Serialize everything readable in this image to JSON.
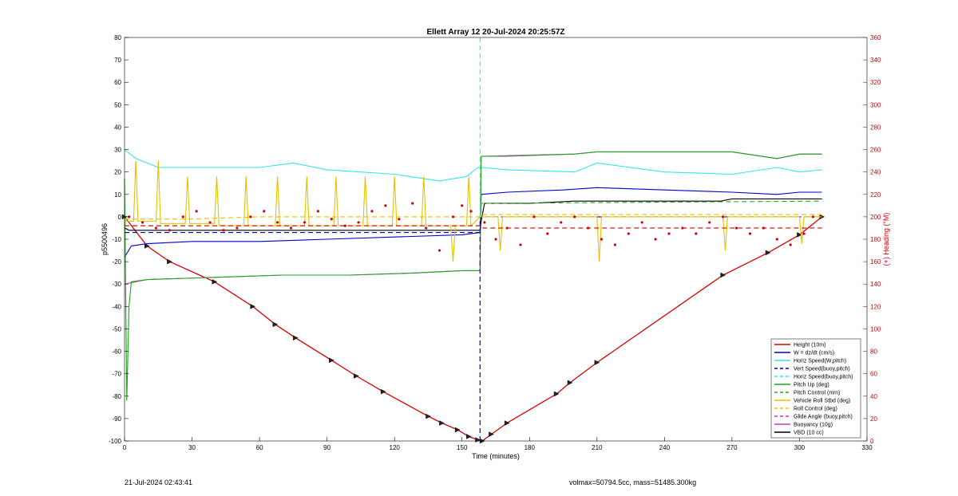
{
  "footer": {
    "left": "21-Jul-2024 02:43:41",
    "right": "volmax=50794.5cc, mass=51485.300kg"
  },
  "chart_data": {
    "type": "line",
    "title": "Ellett Array 12 20-Jul-2024 20:25:57Z",
    "xlabel": "Time (minutes)",
    "ylabel": "p5500496",
    "y2label": "(+) Heading (°M)",
    "xlim": [
      0,
      330
    ],
    "ylim": [
      -100,
      80
    ],
    "y2lim": [
      0,
      360
    ],
    "xticks": [
      0,
      30,
      60,
      90,
      120,
      150,
      180,
      210,
      240,
      270,
      300,
      330
    ],
    "yticks": [
      -100,
      -90,
      -80,
      -70,
      -60,
      -50,
      -40,
      -30,
      -20,
      -10,
      0,
      10,
      20,
      30,
      40,
      50,
      60,
      70,
      80
    ],
    "y2ticks": [
      0,
      20,
      40,
      60,
      80,
      100,
      120,
      140,
      160,
      180,
      200,
      220,
      240,
      260,
      280,
      300,
      320,
      340,
      360
    ],
    "grid": false,
    "legend_position": "bottom-right",
    "legend": [
      {
        "label": "Height (10m)",
        "color": "#d40000",
        "dash": false
      },
      {
        "label": "W = dz/dt (cm/s)",
        "color": "#0000cc",
        "dash": false
      },
      {
        "label": "Horiz Speed(W,pitch)",
        "color": "#33e5e5",
        "dash": false
      },
      {
        "label": "Vert Speed(buoy,pitch)",
        "color": "#0000aa",
        "dash": true
      },
      {
        "label": "Horiz Speed(buoy,pitch)",
        "color": "#33e5e5",
        "dash": true
      },
      {
        "label": "Pitch Up (deg)",
        "color": "#1aa81a",
        "dash": false
      },
      {
        "label": "Pitch Control (mm)",
        "color": "#1aa81a",
        "dash": true
      },
      {
        "label": "Vehicle Roll Stbd (deg)",
        "color": "#e6c000",
        "dash": false
      },
      {
        "label": "Roll Control (deg)",
        "color": "#e6c000",
        "dash": true
      },
      {
        "label": "Glide Angle (buoy,pitch)",
        "color": "#cc33cc",
        "dash": true
      },
      {
        "label": "Buoyancy (10g)",
        "color": "#cc33cc",
        "dash": false
      },
      {
        "label": "VBD (10 cc)",
        "color": "#000000",
        "dash": false
      }
    ],
    "series": [
      {
        "name": "Height (10m)",
        "color": "#d40000",
        "x": [
          0,
          10,
          20,
          40,
          57,
          67,
          76,
          92,
          103,
          115,
          135,
          141,
          148,
          153,
          157,
          159,
          163,
          170,
          192,
          198,
          210,
          266,
          286,
          300,
          310
        ],
        "y": [
          0,
          -13,
          -20,
          -29,
          -40,
          -48,
          -54,
          -64,
          -71,
          -78,
          -89,
          -92,
          -95,
          -98,
          -99.5,
          -100,
          -97,
          -92,
          -79,
          -74,
          -65,
          -26,
          -16,
          -8,
          0
        ]
      },
      {
        "name": "W = dz/dt (cm/s)",
        "color": "#0000cc",
        "x": [
          0,
          3,
          10,
          30,
          60,
          90,
          120,
          150,
          158,
          158.5,
          170,
          195,
          210,
          240,
          270,
          290,
          300,
          310
        ],
        "y": [
          -18,
          -13,
          -12,
          -11,
          -11,
          -10,
          -9,
          -8,
          -7,
          10,
          11,
          12,
          13,
          12,
          11,
          10,
          11,
          11
        ]
      },
      {
        "name": "Horiz Speed(W,pitch)",
        "color": "#33e5e5",
        "x": [
          0,
          5,
          15,
          30,
          60,
          75,
          90,
          120,
          140,
          152,
          157,
          158.5,
          170,
          200,
          210,
          240,
          270,
          290,
          300,
          310
        ],
        "y": [
          30,
          26,
          22,
          22,
          22,
          24,
          21,
          19,
          16,
          18,
          22,
          22,
          21,
          20,
          24,
          20,
          19,
          22,
          20,
          21
        ]
      },
      {
        "name": "Buoyancy (10g)",
        "color": "#cc33cc",
        "x": [
          0,
          10,
          40,
          70,
          100,
          130,
          150,
          158,
          158.5,
          200,
          210,
          240,
          270,
          290,
          300,
          310
        ],
        "y": [
          -30,
          -28,
          -27,
          -26,
          -26,
          -25,
          -24,
          -24,
          27,
          28,
          29,
          29,
          29,
          26,
          28,
          28
        ]
      },
      {
        "name": "Pitch Up (deg)",
        "color": "#1aa81a",
        "x": [
          0,
          1,
          2,
          3,
          10,
          40,
          70,
          100,
          130,
          150,
          158,
          158.5,
          170,
          200,
          210,
          240,
          270,
          290,
          300,
          310
        ],
        "y": [
          17,
          -82,
          -40,
          -29,
          -28,
          -27,
          -26,
          -26,
          -25,
          -24,
          -24,
          27,
          27,
          28,
          29,
          29,
          29,
          26,
          28,
          28
        ]
      },
      {
        "name": "VBD (10 cc)",
        "color": "#000000",
        "x": [
          0,
          2,
          60,
          150,
          158,
          158.5,
          160,
          180,
          200,
          265,
          270,
          310
        ],
        "y": [
          -5,
          -6,
          -6,
          -6,
          -6,
          -2,
          6,
          6,
          7,
          7,
          8,
          8
        ]
      },
      {
        "name": "Vert Speed(buoy,pitch)",
        "color": "#0000aa",
        "dash": true,
        "x": [
          0,
          158,
          158.5,
          310
        ],
        "y": [
          -7,
          -7,
          0,
          0
        ]
      },
      {
        "name": "Pitch Control (mm)",
        "color": "#1aa81a",
        "dash": true,
        "x": [
          0,
          158,
          158.5,
          310
        ],
        "y": [
          -4,
          -4,
          6,
          7
        ]
      },
      {
        "name": "Horiz Speed(buoy,pitch)",
        "color": "#33e5e5",
        "dash": true,
        "x": [
          158,
          158
        ],
        "y": [
          -100,
          80
        ]
      },
      {
        "name": "Vert Speed marker",
        "color": "#0000aa",
        "dash": true,
        "x": [
          158,
          158
        ],
        "y": [
          -100,
          0
        ]
      },
      {
        "name": "Roll Control (deg)",
        "color": "#e6c000",
        "dash": true,
        "x": [
          0,
          30,
          60,
          90,
          120,
          150,
          158,
          158.5,
          200,
          260,
          310
        ],
        "y": [
          -1,
          -1,
          0,
          0,
          0,
          0,
          0,
          1,
          1,
          1,
          1
        ]
      },
      {
        "name": "Vehicle Roll Stbd (deg)",
        "color": "#e6c000",
        "x": [
          0,
          4,
          5,
          6,
          14,
          15,
          16,
          27,
          28,
          29,
          40,
          41,
          42,
          53,
          54,
          55,
          67,
          68,
          69,
          80,
          81,
          82,
          93,
          94,
          95,
          106,
          107,
          108,
          119,
          120,
          121,
          132,
          133,
          134,
          145,
          146,
          147,
          152,
          153,
          154,
          158,
          166,
          167,
          168,
          210,
          211,
          212,
          266,
          267,
          268,
          300,
          301,
          302,
          310
        ],
        "y": [
          -2,
          -2,
          25,
          -2,
          -2,
          25,
          -3,
          -3,
          18,
          -3,
          -3,
          18,
          -4,
          -4,
          18,
          -4,
          -4,
          18,
          -4,
          -4,
          18,
          -4,
          -4,
          18,
          -4,
          -4,
          18,
          -4,
          -4,
          18,
          -4,
          -4,
          18,
          -4,
          -4,
          -20,
          -4,
          -4,
          18,
          -4,
          0,
          0,
          -15,
          0,
          0,
          -20,
          0,
          0,
          -15,
          0,
          0,
          -12,
          0,
          0
        ]
      },
      {
        "name": "Heading",
        "color": "#d40000",
        "axis": "right",
        "scatter": true,
        "x": [
          2,
          8,
          14,
          20,
          26,
          32,
          38,
          44,
          50,
          56,
          62,
          68,
          74,
          80,
          86,
          92,
          98,
          104,
          110,
          116,
          122,
          128,
          134,
          140,
          146,
          150,
          154,
          160,
          165,
          170,
          176,
          182,
          188,
          194,
          200,
          206,
          212,
          218,
          224,
          230,
          236,
          242,
          248,
          254,
          260,
          266,
          272,
          278,
          284,
          290,
          296,
          302,
          306
        ],
        "y": [
          200,
          195,
          190,
          188,
          200,
          205,
          195,
          188,
          190,
          200,
          205,
          195,
          190,
          195,
          205,
          198,
          192,
          195,
          205,
          210,
          198,
          212,
          190,
          170,
          200,
          210,
          205,
          195,
          180,
          190,
          175,
          200,
          185,
          195,
          200,
          190,
          180,
          175,
          185,
          195,
          180,
          185,
          190,
          185,
          195,
          200,
          190,
          185,
          190,
          180,
          175,
          185,
          200
        ]
      },
      {
        "name": "Heading mean",
        "color": "#d40000",
        "axis": "right",
        "dash": true,
        "x": [
          0,
          158,
          158.5,
          310
        ],
        "y": [
          192,
          192,
          190,
          190
        ]
      }
    ]
  }
}
